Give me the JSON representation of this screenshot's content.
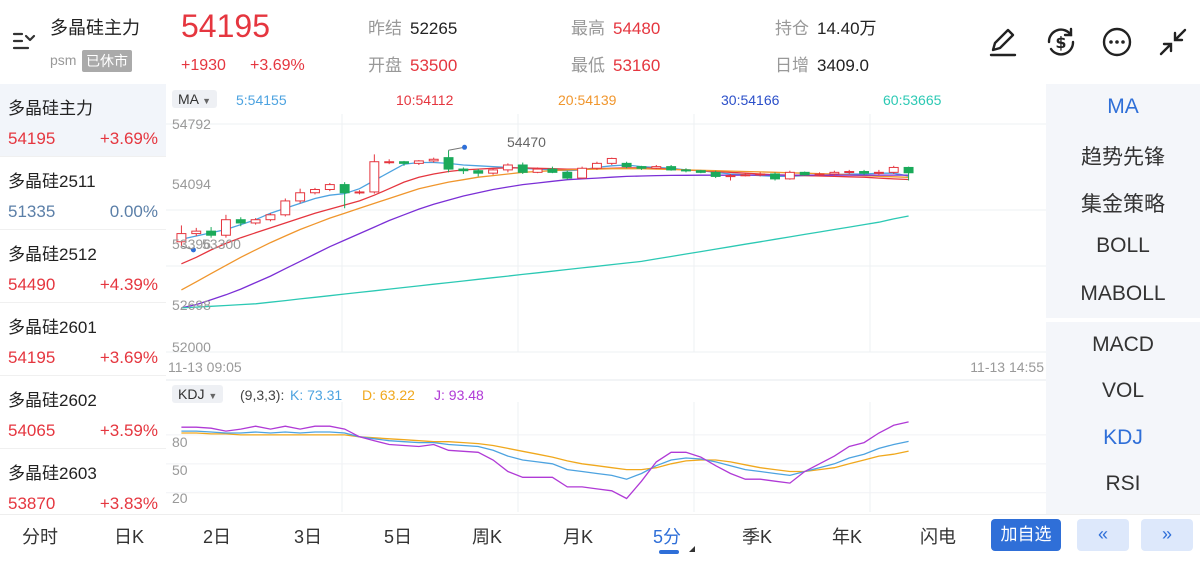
{
  "header": {
    "name": "多晶硅主力",
    "exchange": "psm",
    "status": "已休市",
    "price": "54195",
    "change": "+1930",
    "change_pct": "+3.69%",
    "stats": [
      {
        "label": "昨结",
        "value": "52265",
        "up": false
      },
      {
        "label": "最高",
        "value": "54480",
        "up": true
      },
      {
        "label": "持仓",
        "value": "14.40万",
        "up": false
      },
      {
        "label": "开盘",
        "value": "53500",
        "up": true
      },
      {
        "label": "最低",
        "value": "53160",
        "up": true
      },
      {
        "label": "日增",
        "value": "3409.0",
        "up": false
      }
    ],
    "icons": [
      "edit-icon",
      "exchange-rate-icon",
      "more-icon",
      "collapse-icon"
    ]
  },
  "contracts": [
    {
      "name": "多晶硅主力",
      "price": "54195",
      "pct": "+3.69%",
      "trend": "up"
    },
    {
      "name": "多晶硅2511",
      "price": "51335",
      "pct": "0.00%",
      "trend": "flat"
    },
    {
      "name": "多晶硅2512",
      "price": "54490",
      "pct": "+4.39%",
      "trend": "up"
    },
    {
      "name": "多晶硅2601",
      "price": "54195",
      "pct": "+3.69%",
      "trend": "up"
    },
    {
      "name": "多晶硅2602",
      "price": "54065",
      "pct": "+3.59%",
      "trend": "up"
    },
    {
      "name": "多晶硅2603",
      "price": "53870",
      "pct": "+3.83%",
      "trend": "up"
    }
  ],
  "ma_panel": {
    "selector": "MA",
    "legend": [
      {
        "label": "5:54155",
        "color": "#4da3e0"
      },
      {
        "label": "10:54112",
        "color": "#e5363f"
      },
      {
        "label": "20:54139",
        "color": "#f0962d"
      },
      {
        "label": "30:54166",
        "color": "#2b4fc9"
      },
      {
        "label": "60:53665",
        "color": "#2cc9b4"
      }
    ],
    "y_labels": [
      "54792",
      "54094",
      "53396",
      "52698",
      "52000"
    ],
    "high_marker": "54470",
    "low_marker": "53300",
    "time_start": "11-13 09:05",
    "time_end": "11-13 14:55"
  },
  "kdj_panel": {
    "selector": "KDJ",
    "params": "(9,3,3):",
    "legend": [
      {
        "label": "K: 73.31",
        "color": "#4da3e0"
      },
      {
        "label": "D: 63.22",
        "color": "#f0a81d"
      },
      {
        "label": "J: 93.48",
        "color": "#b03ad6"
      }
    ],
    "y_labels": [
      "80",
      "50",
      "20"
    ]
  },
  "indicators": [
    {
      "label": "MA",
      "active": true
    },
    {
      "label": "趋势先锋",
      "active": false
    },
    {
      "label": "集金策略",
      "active": false
    },
    {
      "label": "BOLL",
      "active": false
    },
    {
      "label": "MABOLL",
      "active": false
    },
    {
      "label": "MACD",
      "active": false
    },
    {
      "label": "VOL",
      "active": false
    },
    {
      "label": "KDJ",
      "active": true
    },
    {
      "label": "RSI",
      "active": false
    }
  ],
  "period_tabs": [
    {
      "label": "分时",
      "active": false
    },
    {
      "label": "日K",
      "active": false
    },
    {
      "label": "2日",
      "active": false
    },
    {
      "label": "3日",
      "active": false
    },
    {
      "label": "5日",
      "active": false
    },
    {
      "label": "周K",
      "active": false
    },
    {
      "label": "月K",
      "active": false
    },
    {
      "label": "5分",
      "active": true
    },
    {
      "label": "季K",
      "active": false
    },
    {
      "label": "年K",
      "active": false
    },
    {
      "label": "闪电",
      "active": false
    }
  ],
  "actions": {
    "add_watchlist": "加自选",
    "prev": "«",
    "next": "»"
  },
  "colors": {
    "up": "#e5363f",
    "down": "#1aaa5a",
    "accent": "#2f6fd8"
  },
  "chart_data": {
    "type": "candlestick",
    "interval": "5分",
    "ylim": [
      52000,
      54792
    ],
    "candles": [
      {
        "o": 53350,
        "c": 53450,
        "h": 53550,
        "l": 53300
      },
      {
        "o": 53450,
        "c": 53480,
        "h": 53520,
        "l": 53420
      },
      {
        "o": 53480,
        "c": 53430,
        "h": 53530,
        "l": 53400
      },
      {
        "o": 53430,
        "c": 53620,
        "h": 53680,
        "l": 53400
      },
      {
        "o": 53620,
        "c": 53580,
        "h": 53650,
        "l": 53540
      },
      {
        "o": 53580,
        "c": 53620,
        "h": 53640,
        "l": 53560
      },
      {
        "o": 53620,
        "c": 53680,
        "h": 53700,
        "l": 53600
      },
      {
        "o": 53680,
        "c": 53850,
        "h": 53880,
        "l": 53660
      },
      {
        "o": 53850,
        "c": 53950,
        "h": 54000,
        "l": 53820
      },
      {
        "o": 53950,
        "c": 53990,
        "h": 54010,
        "l": 53930
      },
      {
        "o": 53990,
        "c": 54050,
        "h": 54070,
        "l": 53970
      },
      {
        "o": 54050,
        "c": 53950,
        "h": 54080,
        "l": 53760
      },
      {
        "o": 53950,
        "c": 53960,
        "h": 53980,
        "l": 53930
      },
      {
        "o": 53960,
        "c": 54330,
        "h": 54420,
        "l": 53940
      },
      {
        "o": 54330,
        "c": 54330,
        "h": 54360,
        "l": 54300
      },
      {
        "o": 54330,
        "c": 54310,
        "h": 54340,
        "l": 54280
      },
      {
        "o": 54310,
        "c": 54340,
        "h": 54350,
        "l": 54290
      },
      {
        "o": 54340,
        "c": 54360,
        "h": 54380,
        "l": 54320
      },
      {
        "o": 54380,
        "c": 54240,
        "h": 54470,
        "l": 54200
      },
      {
        "o": 54240,
        "c": 54220,
        "h": 54260,
        "l": 54180
      },
      {
        "o": 54220,
        "c": 54190,
        "h": 54240,
        "l": 54150
      },
      {
        "o": 54190,
        "c": 54230,
        "h": 54250,
        "l": 54170
      },
      {
        "o": 54230,
        "c": 54290,
        "h": 54310,
        "l": 54200
      },
      {
        "o": 54290,
        "c": 54200,
        "h": 54320,
        "l": 54180
      },
      {
        "o": 54200,
        "c": 54240,
        "h": 54260,
        "l": 54190
      },
      {
        "o": 54240,
        "c": 54200,
        "h": 54270,
        "l": 54190
      },
      {
        "o": 54200,
        "c": 54130,
        "h": 54220,
        "l": 54110
      },
      {
        "o": 54130,
        "c": 54250,
        "h": 54270,
        "l": 54120
      },
      {
        "o": 54250,
        "c": 54310,
        "h": 54330,
        "l": 54230
      },
      {
        "o": 54310,
        "c": 54370,
        "h": 54380,
        "l": 54290
      },
      {
        "o": 54310,
        "c": 54270,
        "h": 54330,
        "l": 54250
      },
      {
        "o": 54270,
        "c": 54250,
        "h": 54280,
        "l": 54230
      },
      {
        "o": 54250,
        "c": 54270,
        "h": 54290,
        "l": 54240
      },
      {
        "o": 54270,
        "c": 54230,
        "h": 54290,
        "l": 54220
      },
      {
        "o": 54230,
        "c": 54220,
        "h": 54250,
        "l": 54200
      },
      {
        "o": 54220,
        "c": 54200,
        "h": 54230,
        "l": 54190
      },
      {
        "o": 54200,
        "c": 54150,
        "h": 54220,
        "l": 54130
      },
      {
        "o": 54150,
        "c": 54160,
        "h": 54180,
        "l": 54100
      },
      {
        "o": 54160,
        "c": 54170,
        "h": 54190,
        "l": 54150
      },
      {
        "o": 54170,
        "c": 54180,
        "h": 54200,
        "l": 54150
      },
      {
        "o": 54180,
        "c": 54120,
        "h": 54200,
        "l": 54100
      },
      {
        "o": 54120,
        "c": 54200,
        "h": 54220,
        "l": 54110
      },
      {
        "o": 54200,
        "c": 54170,
        "h": 54210,
        "l": 54160
      },
      {
        "o": 54170,
        "c": 54180,
        "h": 54200,
        "l": 54150
      },
      {
        "o": 54180,
        "c": 54200,
        "h": 54220,
        "l": 54160
      },
      {
        "o": 54200,
        "c": 54210,
        "h": 54230,
        "l": 54180
      },
      {
        "o": 54210,
        "c": 54190,
        "h": 54230,
        "l": 54170
      },
      {
        "o": 54190,
        "c": 54200,
        "h": 54230,
        "l": 54170
      },
      {
        "o": 54200,
        "c": 54260,
        "h": 54280,
        "l": 54180
      },
      {
        "o": 54260,
        "c": 54195,
        "h": 54270,
        "l": 54100
      }
    ],
    "ma": {
      "5": [
        53380,
        53420,
        53460,
        53500,
        53560,
        53620,
        53700,
        53760,
        53820,
        53880,
        53920,
        53940,
        54000,
        54100,
        54200,
        54300,
        54320,
        54320,
        54310,
        54290,
        54280,
        54270,
        54260,
        54250,
        54240,
        54230,
        54220,
        54230,
        54260,
        54280,
        54290,
        54270,
        54260,
        54250,
        54230,
        54220,
        54200,
        54180,
        54170,
        54160,
        54150,
        54150,
        54160,
        54160,
        54170,
        54180,
        54180,
        54190,
        54190,
        54155
      ],
      "10": [
        53080,
        53160,
        53250,
        53330,
        53400,
        53460,
        53520,
        53580,
        53640,
        53700,
        53750,
        53800,
        53850,
        53920,
        54000,
        54080,
        54140,
        54180,
        54210,
        54230,
        54240,
        54250,
        54255,
        54255,
        54250,
        54245,
        54240,
        54240,
        54245,
        54250,
        54255,
        54255,
        54250,
        54240,
        54230,
        54220,
        54210,
        54200,
        54190,
        54180,
        54170,
        54165,
        54160,
        54155,
        54150,
        54145,
        54140,
        54130,
        54120,
        54112
      ],
      "20": [
        52760,
        52860,
        52960,
        53060,
        53160,
        53250,
        53340,
        53420,
        53500,
        53570,
        53640,
        53700,
        53760,
        53820,
        53880,
        53940,
        54000,
        54040,
        54080,
        54110,
        54140,
        54160,
        54180,
        54200,
        54210,
        54220,
        54230,
        54235,
        54240,
        54245,
        54245,
        54245,
        54240,
        54235,
        54230,
        54225,
        54220,
        54215,
        54210,
        54205,
        54200,
        54195,
        54190,
        54185,
        54180,
        54170,
        54160,
        54150,
        54145,
        54139
      ],
      "30": [
        52540,
        52580,
        52640,
        52700,
        52770,
        52850,
        52930,
        53020,
        53110,
        53200,
        53290,
        53370,
        53450,
        53530,
        53610,
        53680,
        53750,
        53810,
        53860,
        53910,
        53950,
        53990,
        54020,
        54050,
        54070,
        54090,
        54110,
        54120,
        54130,
        54140,
        54150,
        54155,
        54160,
        54162,
        54164,
        54165,
        54165,
        54165,
        54166,
        54166,
        54166,
        54166,
        54166,
        54166,
        54166,
        54166,
        54166,
        54166,
        54166,
        54166
      ],
      "60": [
        52540,
        52550,
        52560,
        52570,
        52580,
        52590,
        52610,
        52630,
        52650,
        52670,
        52690,
        52710,
        52730,
        52750,
        52770,
        52790,
        52810,
        52830,
        52850,
        52870,
        52890,
        52910,
        52930,
        52950,
        52970,
        52990,
        53010,
        53030,
        53050,
        53070,
        53090,
        53110,
        53140,
        53170,
        53200,
        53230,
        53260,
        53290,
        53320,
        53350,
        53380,
        53410,
        53440,
        53470,
        53500,
        53530,
        53560,
        53590,
        53630,
        53665
      ]
    },
    "kdj": {
      "ylim": [
        0,
        110
      ],
      "K": [
        84,
        84,
        83,
        82,
        82,
        83,
        82,
        83,
        82,
        83,
        83,
        82,
        78,
        76,
        74,
        73,
        72,
        72,
        70,
        69,
        68,
        64,
        58,
        54,
        52,
        50,
        44,
        42,
        40,
        38,
        34,
        40,
        48,
        54,
        56,
        55,
        52,
        48,
        44,
        42,
        40,
        38,
        42,
        46,
        50,
        56,
        60,
        66,
        70,
        73.31
      ],
      "D": [
        82,
        82,
        81,
        81,
        80,
        80,
        80,
        80,
        80,
        80,
        80,
        80,
        78,
        77,
        76,
        75,
        74,
        73,
        73,
        72,
        71,
        69,
        66,
        63,
        60,
        57,
        53,
        50,
        48,
        46,
        44,
        44,
        46,
        50,
        53,
        54,
        54,
        52,
        49,
        46,
        44,
        42,
        42,
        44,
        46,
        50,
        54,
        58,
        60,
        63.22
      ],
      "J": [
        88,
        88,
        87,
        84,
        86,
        89,
        86,
        89,
        86,
        89,
        89,
        86,
        78,
        74,
        70,
        69,
        68,
        70,
        64,
        63,
        62,
        54,
        42,
        36,
        36,
        36,
        26,
        26,
        24,
        22,
        14,
        32,
        52,
        62,
        62,
        57,
        48,
        40,
        34,
        34,
        32,
        30,
        42,
        50,
        58,
        68,
        72,
        82,
        90,
        93.48
      ]
    }
  }
}
